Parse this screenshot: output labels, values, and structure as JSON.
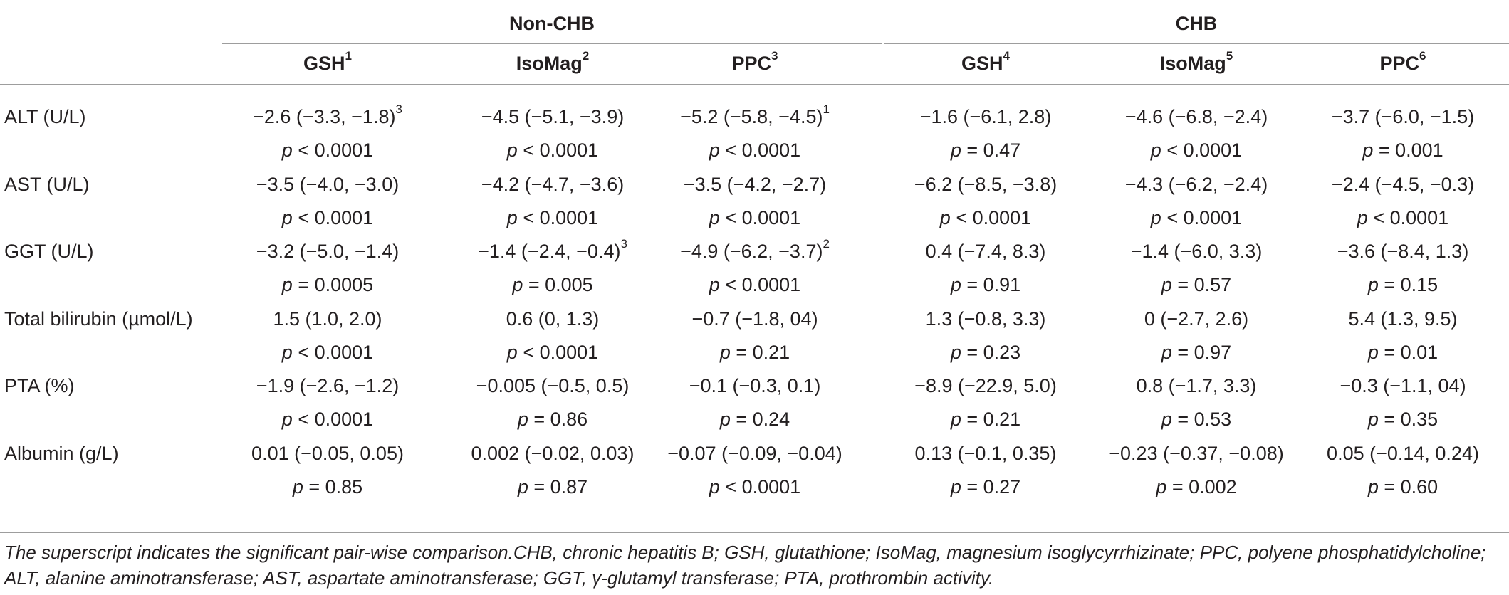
{
  "group_headers": [
    "Non-CHB",
    "CHB"
  ],
  "columns": [
    {
      "label": "GSH",
      "sup": "1"
    },
    {
      "label": "IsoMag",
      "sup": "2"
    },
    {
      "label": "PPC",
      "sup": "3"
    },
    {
      "label": "GSH",
      "sup": "4"
    },
    {
      "label": "IsoMag",
      "sup": "5"
    },
    {
      "label": "PPC",
      "sup": "6"
    }
  ],
  "rows": [
    {
      "label": "ALT (U/L)",
      "cells": [
        {
          "est": "−2.6 (−3.3, −1.8)",
          "sup": "3",
          "pref": "p",
          "pval": " < 0.0001"
        },
        {
          "est": "−4.5 (−5.1, −3.9)",
          "sup": "",
          "pref": "p",
          "pval": " < 0.0001"
        },
        {
          "est": "−5.2 (−5.8, −4.5)",
          "sup": "1",
          "pref": "p",
          "pval": " < 0.0001"
        },
        {
          "est": "−1.6 (−6.1, 2.8)",
          "sup": "",
          "pref": "p",
          "pval": " = 0.47"
        },
        {
          "est": "−4.6 (−6.8, −2.4)",
          "sup": "",
          "pref": "p",
          "pval": " < 0.0001"
        },
        {
          "est": "−3.7 (−6.0, −1.5)",
          "sup": "",
          "pref": "p",
          "pval": " = 0.001"
        }
      ]
    },
    {
      "label": "AST (U/L)",
      "cells": [
        {
          "est": "−3.5 (−4.0, −3.0)",
          "sup": "",
          "pref": "p",
          "pval": " < 0.0001"
        },
        {
          "est": "−4.2 (−4.7, −3.6)",
          "sup": "",
          "pref": "p",
          "pval": " < 0.0001"
        },
        {
          "est": "−3.5 (−4.2, −2.7)",
          "sup": "",
          "pref": "p",
          "pval": " < 0.0001"
        },
        {
          "est": "−6.2 (−8.5, −3.8)",
          "sup": "",
          "pref": "p",
          "pval": " < 0.0001"
        },
        {
          "est": "−4.3 (−6.2, −2.4)",
          "sup": "",
          "pref": "p",
          "pval": " < 0.0001"
        },
        {
          "est": "−2.4 (−4.5, −0.3)",
          "sup": "",
          "pref": "p",
          "pval": " < 0.0001"
        }
      ]
    },
    {
      "label": "GGT (U/L)",
      "cells": [
        {
          "est": "−3.2 (−5.0, −1.4)",
          "sup": "",
          "pref": "p",
          "pval": " = 0.0005"
        },
        {
          "est": "−1.4 (−2.4, −0.4)",
          "sup": "3",
          "pref": "p",
          "pval": " = 0.005"
        },
        {
          "est": "−4.9 (−6.2, −3.7)",
          "sup": "2",
          "pref": "p",
          "pval": " < 0.0001"
        },
        {
          "est": "0.4 (−7.4, 8.3)",
          "sup": "",
          "pref": "p",
          "pval": " = 0.91"
        },
        {
          "est": "−1.4 (−6.0, 3.3)",
          "sup": "",
          "pref": "p",
          "pval": " = 0.57"
        },
        {
          "est": "−3.6 (−8.4, 1.3)",
          "sup": "",
          "pref": "p",
          "pval": " = 0.15"
        }
      ]
    },
    {
      "label": "Total bilirubin (µmol/L)",
      "cells": [
        {
          "est": "1.5 (1.0, 2.0)",
          "sup": "",
          "pref": "p",
          "pval": " < 0.0001"
        },
        {
          "est": "0.6 (0, 1.3)",
          "sup": "",
          "pref": "p",
          "pval": " < 0.0001"
        },
        {
          "est": "−0.7 (−1.8, 04)",
          "sup": "",
          "pref": "p",
          "pval": " = 0.21"
        },
        {
          "est": "1.3 (−0.8, 3.3)",
          "sup": "",
          "pref": "p",
          "pval": " = 0.23"
        },
        {
          "est": "0 (−2.7, 2.6)",
          "sup": "",
          "pref": "p",
          "pval": " = 0.97"
        },
        {
          "est": "5.4 (1.3, 9.5)",
          "sup": "",
          "pref": "p",
          "pval": " = 0.01"
        }
      ]
    },
    {
      "label": "PTA (%)",
      "cells": [
        {
          "est": "−1.9 (−2.6, −1.2)",
          "sup": "",
          "pref": "p",
          "pval": " < 0.0001"
        },
        {
          "est": "−0.005 (−0.5, 0.5)",
          "sup": "",
          "pref": "p",
          "pval": " = 0.86"
        },
        {
          "est": "−0.1 (−0.3, 0.1)",
          "sup": "",
          "pref": "p",
          "pval": " = 0.24"
        },
        {
          "est": "−8.9 (−22.9, 5.0)",
          "sup": "",
          "pref": "p",
          "pval": " = 0.21"
        },
        {
          "est": "0.8 (−1.7, 3.3)",
          "sup": "",
          "pref": "p",
          "pval": " = 0.53"
        },
        {
          "est": "−0.3 (−1.1, 04)",
          "sup": "",
          "pref": "p",
          "pval": " = 0.35"
        }
      ]
    },
    {
      "label": "Albumin (g/L)",
      "cells": [
        {
          "est": "0.01 (−0.05, 0.05)",
          "sup": "",
          "pref": "p",
          "pval": " = 0.85"
        },
        {
          "est": "0.002 (−0.02, 0.03)",
          "sup": "",
          "pref": "p",
          "pval": " = 0.87"
        },
        {
          "est": "−0.07 (−0.09, −0.04)",
          "sup": "",
          "pref": "p",
          "pval": " < 0.0001"
        },
        {
          "est": "0.13 (−0.1, 0.35)",
          "sup": "",
          "pref": "p",
          "pval": " = 0.27"
        },
        {
          "est": "−0.23 (−0.37, −0.08)",
          "sup": "",
          "pref": "p",
          "pval": " = 0.002"
        },
        {
          "est": "0.05 (−0.14, 0.24)",
          "sup": "",
          "pref": "p",
          "pval": " = 0.60"
        }
      ]
    }
  ],
  "footnote": "The superscript indicates the significant pair-wise comparison.CHB, chronic hepatitis B; GSH, glutathione; IsoMag, magnesium isoglycyrrhizinate; PPC, polyene phosphatidylcholine; ALT, alanine aminotransferase; AST, aspartate aminotransferase; GGT, γ-glutamyl transferase; PTA, prothrombin activity."
}
